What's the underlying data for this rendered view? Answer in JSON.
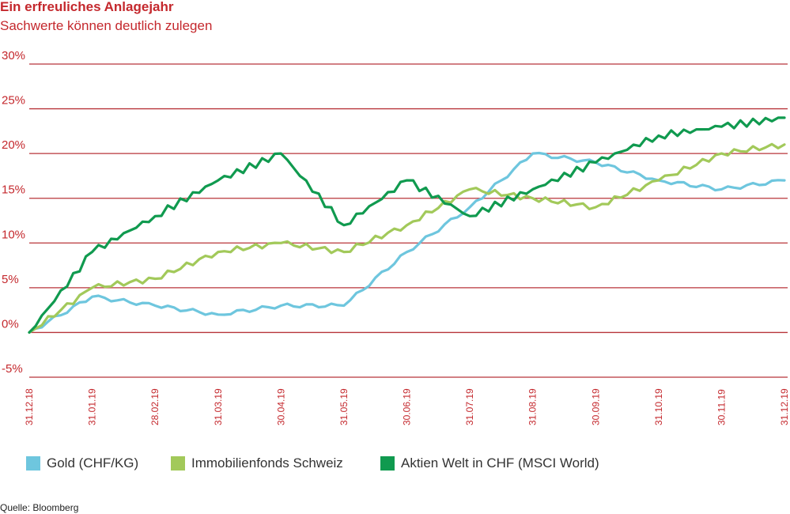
{
  "header": {
    "title": "Ein erfreuliches Anlagejahr",
    "subtitle": "Sachwerte können deutlich zulegen"
  },
  "footer": {
    "source": "Quelle: Bloomberg"
  },
  "colors": {
    "text_red": "#c4282d",
    "grid_red": "#b8343a",
    "gold": "#6ec6de",
    "immobilien": "#a2c95a",
    "aktien": "#109a4f"
  },
  "chart_data": {
    "type": "line",
    "title": "",
    "xlabel": "",
    "ylabel": "",
    "ylim": [
      -5,
      30
    ],
    "xlim": [
      "31.12.18",
      "31.12.19"
    ],
    "y_ticks": [
      30,
      25,
      20,
      15,
      10,
      5,
      0,
      -5
    ],
    "y_tick_labels": [
      "30%",
      "25%",
      "20%",
      "15%",
      "10%",
      "5%",
      "0%",
      "-5%"
    ],
    "x_ticks": [
      "31.12.18",
      "31.01.19",
      "28.02.19",
      "31.03.19",
      "30.04.19",
      "31.05.19",
      "30.06.19",
      "31.07.19",
      "31.08.19",
      "30.09.19",
      "31.10.19",
      "30.11.19",
      "31.12.19"
    ],
    "grid": "horizontal",
    "legend_position": "bottom",
    "series": [
      {
        "name": "Gold (CHF/KG)",
        "color": "#6ec6de",
        "x": [
          "31.12.18",
          "31.01.19",
          "28.02.19",
          "31.03.19",
          "30.04.19",
          "31.05.19",
          "30.06.19",
          "31.07.19",
          "31.08.19",
          "30.09.19",
          "31.10.19",
          "30.11.19",
          "31.12.19"
        ],
        "values": [
          0,
          4,
          3,
          2,
          3,
          3,
          9,
          14,
          20,
          19,
          17,
          16,
          17
        ]
      },
      {
        "name": "Immobilienfonds Schweiz",
        "color": "#a2c95a",
        "x": [
          "31.12.18",
          "31.01.19",
          "28.02.19",
          "31.03.19",
          "30.04.19",
          "31.05.19",
          "30.06.19",
          "31.07.19",
          "31.08.19",
          "30.09.19",
          "31.10.19",
          "30.11.19",
          "31.12.19"
        ],
        "values": [
          0,
          5,
          6,
          9,
          10,
          9,
          12,
          16,
          15,
          14,
          17,
          20,
          21
        ]
      },
      {
        "name": "Aktien Welt in CHF (MSCI World)",
        "color": "#109a4f",
        "x": [
          "31.12.18",
          "31.01.19",
          "28.02.19",
          "31.03.19",
          "30.04.19",
          "31.05.19",
          "30.06.19",
          "31.07.19",
          "31.08.19",
          "30.09.19",
          "31.10.19",
          "30.11.19",
          "31.12.19"
        ],
        "values": [
          0,
          9,
          13,
          17,
          20,
          12,
          17,
          13,
          16,
          19,
          22,
          23,
          24
        ]
      }
    ]
  }
}
